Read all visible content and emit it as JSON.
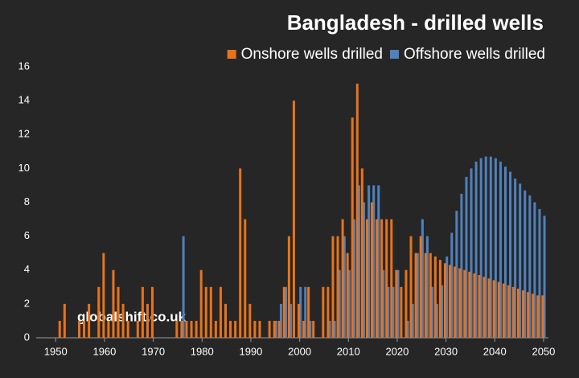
{
  "chart_data": {
    "type": "bar",
    "title": "Bangladesh - drilled wells",
    "watermark": "globalshift.co.uk",
    "x": [
      1950,
      1951,
      1952,
      1953,
      1954,
      1955,
      1956,
      1957,
      1958,
      1959,
      1960,
      1961,
      1962,
      1963,
      1964,
      1965,
      1966,
      1967,
      1968,
      1969,
      1970,
      1971,
      1972,
      1973,
      1974,
      1975,
      1976,
      1977,
      1978,
      1979,
      1980,
      1981,
      1982,
      1983,
      1984,
      1985,
      1986,
      1987,
      1988,
      1989,
      1990,
      1991,
      1992,
      1993,
      1994,
      1995,
      1996,
      1997,
      1998,
      1999,
      2000,
      2001,
      2002,
      2003,
      2004,
      2005,
      2006,
      2007,
      2008,
      2009,
      2010,
      2011,
      2012,
      2013,
      2014,
      2015,
      2016,
      2017,
      2018,
      2019,
      2020,
      2021,
      2022,
      2023,
      2024,
      2025,
      2026,
      2027,
      2028,
      2029,
      2030,
      2031,
      2032,
      2033,
      2034,
      2035,
      2036,
      2037,
      2038,
      2039,
      2040,
      2041,
      2042,
      2043,
      2044,
      2045,
      2046,
      2047,
      2048,
      2049,
      2050
    ],
    "series": [
      {
        "name": "Onshore wells drilled",
        "color": "#e8731c",
        "values": [
          0,
          1,
          2,
          0,
          0,
          1,
          1,
          2,
          0,
          3,
          5,
          1,
          4,
          3,
          2,
          1,
          0,
          1,
          3,
          2,
          3,
          0,
          0,
          0,
          0,
          1,
          1,
          1,
          1,
          1,
          4,
          3,
          3,
          1,
          3,
          2,
          1,
          1,
          10,
          7,
          2,
          1,
          1,
          0,
          1,
          1,
          1,
          3,
          6,
          14,
          2,
          1,
          3,
          1,
          0,
          3,
          3,
          6,
          6,
          7,
          5,
          13,
          15,
          10,
          7,
          8,
          7,
          7,
          7,
          7,
          4,
          3,
          4,
          6,
          5,
          6,
          5,
          5,
          4.8,
          4.6,
          4.4,
          4.3,
          4.2,
          4.1,
          4,
          3.9,
          3.8,
          3.7,
          3.6,
          3.5,
          3.4,
          3.3,
          3.2,
          3.1,
          3,
          2.9,
          2.8,
          2.7,
          2.6,
          2.5,
          2.5
        ]
      },
      {
        "name": "Offshore wells drilled",
        "color": "#4f81bd",
        "values": [
          0,
          0,
          0,
          0,
          0,
          0,
          0,
          0,
          0,
          0,
          0,
          0,
          0,
          0,
          0,
          0,
          0,
          0,
          0,
          0,
          0,
          0,
          0,
          0,
          0,
          0,
          6,
          0,
          0,
          0,
          0,
          0,
          0,
          0,
          0,
          0,
          0,
          0,
          0,
          0,
          0,
          0,
          0,
          0,
          0,
          1,
          2,
          3,
          2,
          0,
          3,
          3,
          1,
          0,
          0,
          0,
          1,
          1,
          4,
          6,
          4,
          7,
          9,
          8,
          9,
          9,
          9,
          4,
          3,
          3,
          4,
          0,
          1,
          2,
          5,
          7,
          6,
          3,
          2,
          3.1,
          4.8,
          6.2,
          7.5,
          8.5,
          9.5,
          10,
          10.4,
          10.6,
          10.7,
          10.7,
          10.6,
          10.4,
          10.1,
          9.8,
          9.4,
          9.1,
          8.7,
          8.4,
          8,
          7.6,
          7.2
        ]
      }
    ],
    "xlim": [
      1946,
      2051
    ],
    "xticks": [
      1950,
      1960,
      1970,
      1980,
      1990,
      2000,
      2010,
      2020,
      2030,
      2040,
      2050
    ],
    "ylim": [
      0,
      16
    ],
    "yticks": [
      0,
      2,
      4,
      6,
      8,
      10,
      12,
      14,
      16
    ],
    "grid": false,
    "legend": "top-right"
  }
}
